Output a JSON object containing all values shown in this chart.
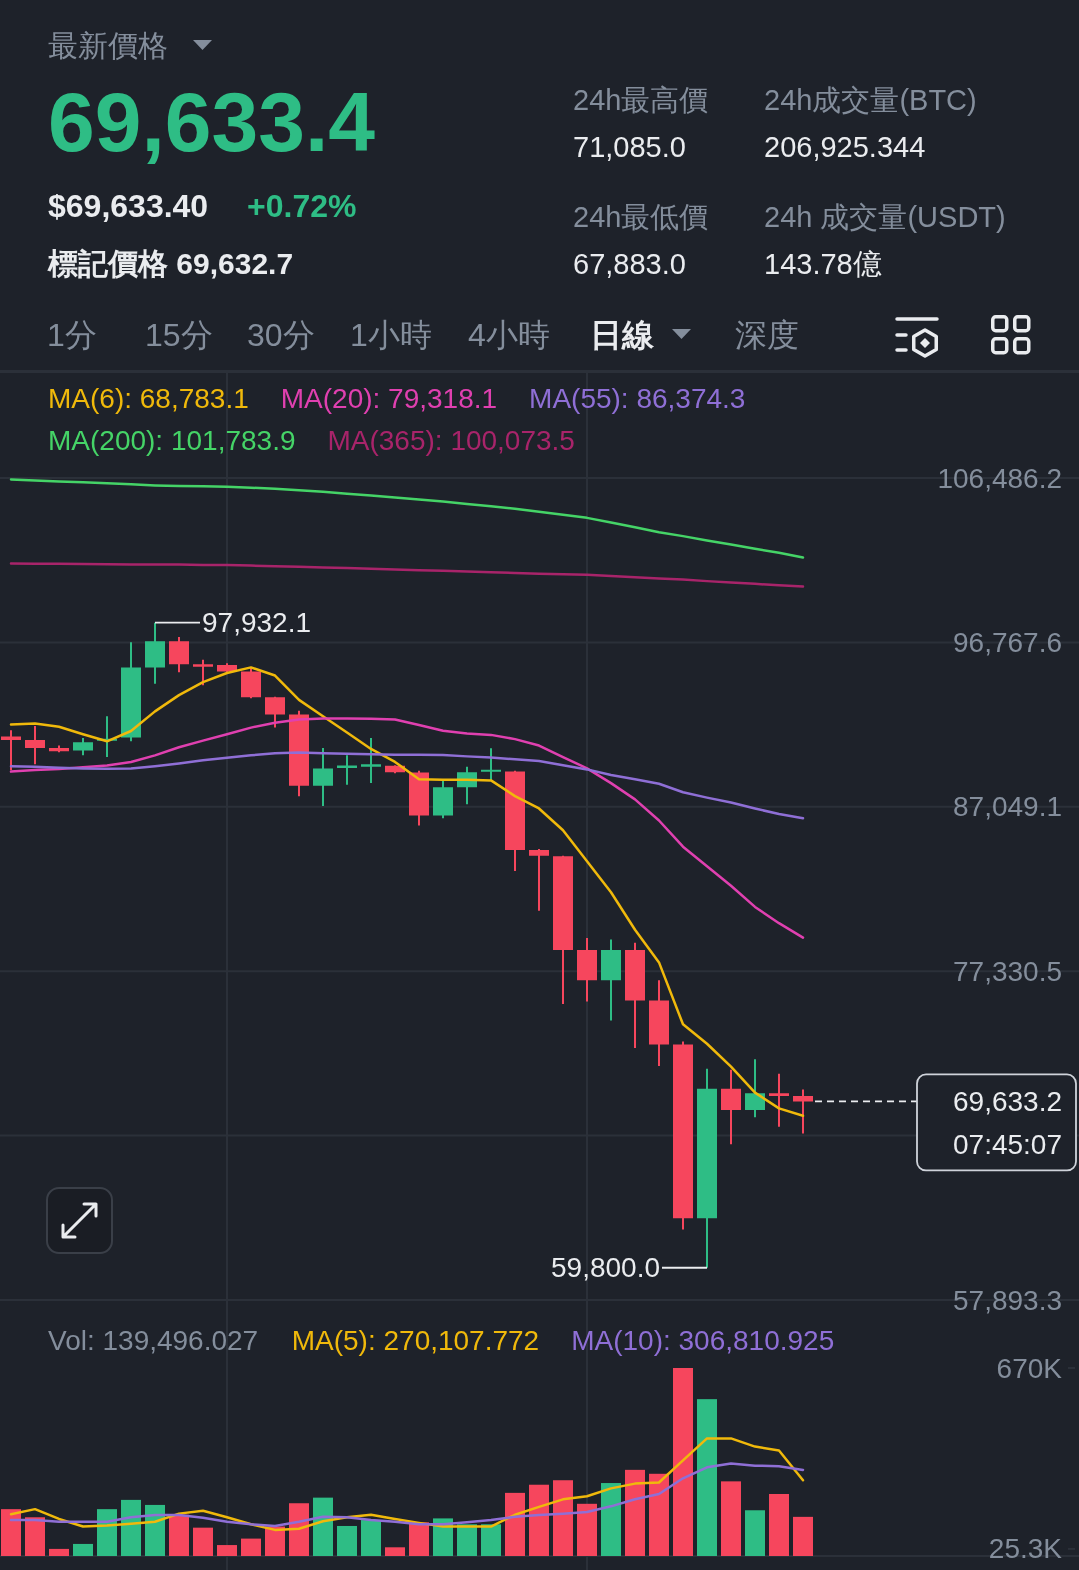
{
  "chart_data": [
    {
      "type": "other",
      "title": "最新價格",
      "annotations": [
        "69,633.4",
        "$69,633.40",
        "+0.72%",
        "標記價格 69,632.7",
        "24h最高價",
        "71,085.0",
        "24h成交量(BTC)",
        "206,925.344",
        "24h最低價",
        "67,883.0",
        "24h 成交量(USDT)",
        "143.78億",
        "1分",
        "15分",
        "30分",
        "1小時",
        "4小時",
        "日線",
        "深度"
      ]
    },
    {
      "type": "candlestick",
      "categories": [
        null,
        null,
        null,
        null,
        null,
        null,
        null,
        null,
        null,
        null,
        null,
        null,
        null,
        null,
        null,
        null,
        null,
        null,
        null,
        null,
        null,
        null,
        null,
        null,
        null,
        null,
        null,
        null,
        null,
        null,
        null,
        null,
        null,
        null
      ],
      "ohlc": [
        [
          91210,
          91570,
          89220,
          91000
        ],
        [
          91000,
          91820,
          89570,
          90530
        ],
        [
          90530,
          90670,
          90280,
          90340
        ],
        [
          90380,
          91110,
          90090,
          90860
        ],
        [
          90960,
          92400,
          89990,
          91070
        ],
        [
          91150,
          96780,
          90920,
          95290
        ],
        [
          95290,
          97932.1,
          94330,
          96830
        ],
        [
          96830,
          97080,
          95000,
          95480
        ],
        [
          95480,
          95740,
          94230,
          95330
        ],
        [
          95430,
          95540,
          95000,
          95040
        ],
        [
          95040,
          95290,
          93460,
          93520
        ],
        [
          93520,
          93560,
          91730,
          92500
        ],
        [
          92500,
          92730,
          87680,
          88300
        ],
        [
          88300,
          90530,
          87100,
          89320
        ],
        [
          89340,
          90090,
          88350,
          89490
        ],
        [
          89410,
          91110,
          88450,
          89570
        ],
        [
          89470,
          89510,
          89030,
          89090
        ],
        [
          89070,
          89180,
          85950,
          86530
        ],
        [
          86530,
          88610,
          86370,
          88200
        ],
        [
          88200,
          89420,
          87200,
          89090
        ],
        [
          89130,
          90510,
          88610,
          89240
        ],
        [
          89130,
          89180,
          83250,
          84500
        ],
        [
          84500,
          84560,
          80900,
          84150
        ],
        [
          84120,
          84150,
          75390,
          78590
        ],
        [
          78590,
          79300,
          75540,
          76790
        ],
        [
          76790,
          79200,
          74420,
          78590
        ],
        [
          78590,
          79010,
          72790,
          75600
        ],
        [
          75600,
          76790,
          71730,
          73000
        ],
        [
          73000,
          73170,
          62060,
          62730
        ],
        [
          62730,
          71560,
          59800.0,
          70380
        ],
        [
          70380,
          71500,
          67100,
          69130
        ],
        [
          69130,
          72130,
          68700,
          70110
        ],
        [
          70110,
          71270,
          68130,
          69960
        ],
        [
          69960,
          70340,
          67740,
          69633.2
        ]
      ],
      "colors": [
        "#f6465d",
        "#f6465d",
        "#f6465d",
        "#2ebd85",
        "#2ebd85",
        "#2ebd85",
        "#2ebd85",
        "#f6465d",
        "#f6465d",
        "#f6465d",
        "#f6465d",
        "#f6465d",
        "#f6465d",
        "#2ebd85",
        "#2ebd85",
        "#2ebd85",
        "#f6465d",
        "#f6465d",
        "#2ebd85",
        "#2ebd85",
        "#2ebd85",
        "#f6465d",
        "#f6465d",
        "#f6465d",
        "#f6465d",
        "#2ebd85",
        "#f6465d",
        "#f6465d",
        "#f6465d",
        "#2ebd85",
        "#f6465d",
        "#2ebd85",
        "#f6465d",
        "#f6465d"
      ],
      "series": [
        {
          "type": "line",
          "name": "MA(6): 68,783.1",
          "color": "#f0b90b",
          "values": [
            91920,
            91980,
            91780,
            91340,
            90920,
            91530,
            92690,
            93650,
            94420,
            94960,
            95290,
            94810,
            93370,
            92400,
            91440,
            90470,
            89700,
            88680,
            88650,
            88650,
            88610,
            87680,
            86950,
            85660,
            83830,
            82000,
            79780,
            77850,
            74190,
            73040,
            71690,
            70150,
            69220,
            68783.1
          ]
        },
        {
          "type": "line",
          "name": "MA(20): 79,318.1",
          "color": "#e040b0",
          "values": [
            89130,
            89220,
            89280,
            89380,
            89490,
            89700,
            90090,
            90570,
            90960,
            91340,
            91730,
            92020,
            92210,
            92270,
            92270,
            92250,
            92210,
            91880,
            91540,
            91380,
            91300,
            91050,
            90670,
            89990,
            89320,
            88450,
            87490,
            86240,
            84690,
            83540,
            82380,
            81130,
            80170,
            79318.1
          ]
        },
        {
          "type": "line",
          "name": "MA(55): 86,374.3",
          "color": "#8f6fd6",
          "values": [
            89450,
            89410,
            89360,
            89320,
            89300,
            89320,
            89450,
            89610,
            89800,
            89950,
            90090,
            90220,
            90260,
            90220,
            90190,
            90150,
            90130,
            90130,
            90110,
            90030,
            89960,
            89860,
            89760,
            89510,
            89260,
            88930,
            88680,
            88410,
            87910,
            87590,
            87300,
            86950,
            86620,
            86374.3
          ]
        },
        {
          "type": "line",
          "name": "MA(200): 101,783.9",
          "color": "#45d467",
          "values": [
            106400,
            106340,
            106280,
            106230,
            106170,
            106110,
            106050,
            106020,
            106000,
            105970,
            105910,
            105850,
            105760,
            105680,
            105560,
            105450,
            105330,
            105220,
            105100,
            104950,
            104810,
            104670,
            104490,
            104320,
            104130,
            103860,
            103570,
            103280,
            103050,
            102790,
            102560,
            102300,
            102070,
            101783.9
          ]
        },
        {
          "type": "line",
          "name": "MA(365): 100,073.5",
          "color": "#a8246a",
          "values": [
            101430,
            101420,
            101410,
            101400,
            101390,
            101380,
            101370,
            101370,
            101350,
            101340,
            101310,
            101270,
            101240,
            101200,
            101160,
            101120,
            101080,
            101040,
            101000,
            100960,
            100910,
            100870,
            100830,
            100790,
            100760,
            100700,
            100620,
            100550,
            100480,
            100390,
            100310,
            100230,
            100140,
            100073.5
          ]
        }
      ],
      "ylim": [
        57893.3,
        106486.2
      ],
      "yticks": [
        {
          "value": 57893.3,
          "label": "57,893.3"
        },
        {
          "value": 67612.0,
          "label": null
        },
        {
          "value": 77330.5,
          "label": "77,330.5"
        },
        {
          "value": 87049.1,
          "label": "87,049.1"
        },
        {
          "value": 96767.6,
          "label": "96,767.6"
        },
        {
          "value": 106486.2,
          "label": "106,486.2"
        }
      ],
      "grid": "y",
      "tick_labels": "y",
      "annotations": [
        "97,932.1",
        "59,800.0",
        "07:45:07"
      ],
      "ref_lines": [
        {
          "axis": "y",
          "value": 69633.2,
          "label": "69,633.2",
          "color": "#eaecef",
          "line_style": "dashed"
        }
      ]
    },
    {
      "type": "bar",
      "title": "Vol: 139,496.027",
      "categories": [
        null,
        null,
        null,
        null,
        null,
        null,
        null,
        null,
        null,
        null,
        null,
        null,
        null,
        null,
        null,
        null,
        null,
        null,
        null,
        null,
        null,
        null,
        null,
        null,
        null,
        null,
        null,
        null,
        null,
        null,
        null,
        null,
        null,
        null
      ],
      "series": [
        {
          "type": "bar",
          "colors": [
            "#f6465d",
            "#f6465d",
            "#f6465d",
            "#2ebd85",
            "#2ebd85",
            "#2ebd85",
            "#2ebd85",
            "#f6465d",
            "#f6465d",
            "#f6465d",
            "#f6465d",
            "#f6465d",
            "#f6465d",
            "#2ebd85",
            "#2ebd85",
            "#2ebd85",
            "#f6465d",
            "#f6465d",
            "#2ebd85",
            "#2ebd85",
            "#2ebd85",
            "#f6465d",
            "#f6465d",
            "#f6465d",
            "#f6465d",
            "#2ebd85",
            "#f6465d",
            "#f6465d",
            "#f6465d",
            "#2ebd85",
            "#f6465d",
            "#2ebd85",
            "#f6465d",
            "#f6465d"
          ],
          "values": [
            167000,
            138000,
            25300,
            43000,
            167000,
            200000,
            182000,
            147000,
            101000,
            39000,
            62000,
            105000,
            188000,
            208000,
            107000,
            128000,
            31000,
            120000,
            134000,
            113000,
            113000,
            225000,
            254000,
            270000,
            186000,
            260000,
            307000,
            293000,
            670000,
            559000,
            266000,
            163000,
            221000,
            139496.027
          ]
        },
        {
          "type": "line",
          "name": "MA(5): 270,107.772",
          "color": "#f0b90b",
          "values": [
            149000,
            167000,
            132000,
            105000,
            109000,
            115000,
            122000,
            151000,
            161000,
            138000,
            113000,
            93000,
            97000,
            124000,
            138000,
            147000,
            132000,
            118000,
            105000,
            105000,
            105000,
            147000,
            175000,
            202000,
            213000,
            241000,
            258000,
            262000,
            341000,
            419000,
            419000,
            390000,
            376000,
            270107.772
          ]
        },
        {
          "type": "line",
          "name": "MA(10): 306,810.925",
          "color": "#8f6fd6",
          "values": [
            128000,
            128000,
            122000,
            122000,
            122000,
            138000,
            146000,
            146000,
            136000,
            122000,
            113000,
            107000,
            122000,
            140000,
            138000,
            128000,
            122000,
            113000,
            113000,
            120000,
            128000,
            140000,
            146000,
            151000,
            157000,
            177000,
            202000,
            221000,
            277000,
            316000,
            330000,
            322000,
            320000,
            306810.925
          ]
        }
      ],
      "ylim": [
        0,
        670000
      ],
      "yticks": [
        {
          "value": 25300,
          "label": "25.3K"
        },
        {
          "value": 670000,
          "label": "670K"
        }
      ],
      "tick_labels": "y"
    }
  ]
}
